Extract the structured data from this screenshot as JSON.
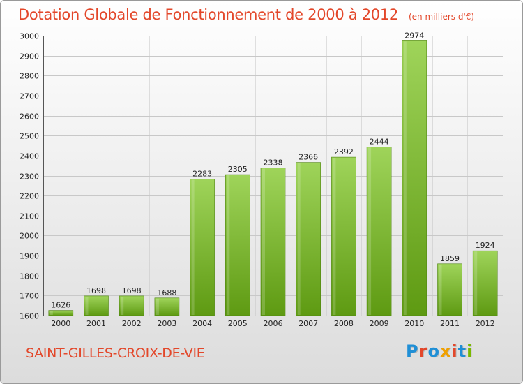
{
  "page": {
    "title": "Dotation Globale de Fonctionnement de 2000 à 2012",
    "unit": "(en milliers d'€)",
    "commune": "SAINT-GILLES-CROIX-DE-VIE",
    "brand": {
      "text": "Proxiti",
      "letter_colors": [
        "#1f8fd6",
        "#e3472a",
        "#1f8fd6",
        "#f0a000",
        "#e3472a",
        "#1f8fd6",
        "#7ab800"
      ]
    }
  },
  "colors": {
    "accent": "#e3472a",
    "bar_top": "#9fd45a",
    "bar_bottom": "#5e9a12",
    "grid": "#c8c8c8"
  },
  "chart_data": {
    "type": "bar",
    "title": "Dotation Globale de Fonctionnement de 2000 à 2012",
    "subtitle": "(en milliers d'€)",
    "xlabel": "",
    "ylabel": "",
    "categories": [
      "2000",
      "2001",
      "2002",
      "2003",
      "2004",
      "2005",
      "2006",
      "2007",
      "2008",
      "2009",
      "2010",
      "2011",
      "2012"
    ],
    "values": [
      1626,
      1698,
      1698,
      1688,
      2283,
      2305,
      2338,
      2366,
      2392,
      2444,
      2974,
      1859,
      1924
    ],
    "ylim": [
      1600,
      3000
    ],
    "yticks": [
      1600,
      1700,
      1800,
      1900,
      2000,
      2100,
      2200,
      2300,
      2400,
      2500,
      2600,
      2700,
      2800,
      2900,
      3000
    ],
    "grid": true,
    "legend": "none"
  }
}
